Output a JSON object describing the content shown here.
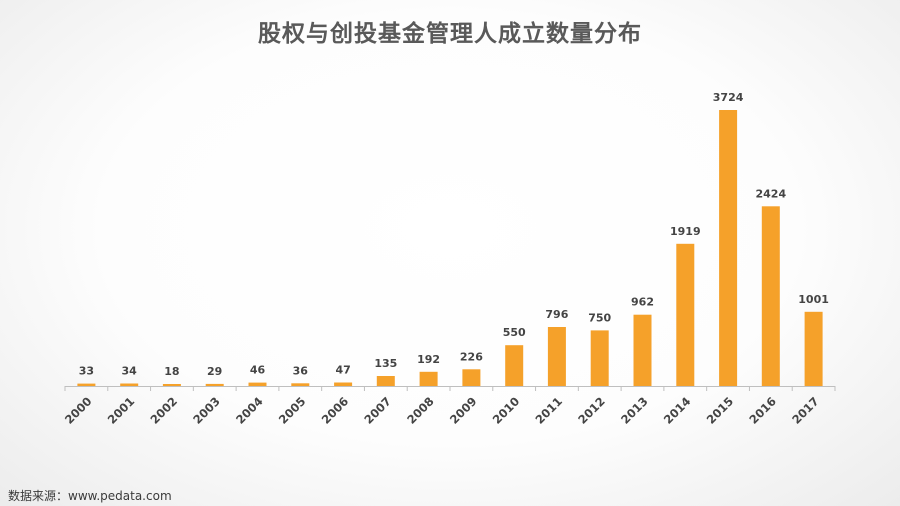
{
  "chart_data": {
    "type": "bar",
    "title": "股权与创投基金管理人成立数量分布",
    "xlabel": "",
    "ylabel": "",
    "categories": [
      "2000",
      "2001",
      "2002",
      "2003",
      "2004",
      "2005",
      "2006",
      "2007",
      "2008",
      "2009",
      "2010",
      "2011",
      "2012",
      "2013",
      "2014",
      "2015",
      "2016",
      "2017"
    ],
    "values": [
      33,
      34,
      18,
      29,
      46,
      36,
      47,
      135,
      192,
      226,
      550,
      796,
      750,
      962,
      1919,
      3724,
      2424,
      1001
    ],
    "ylim": [
      0,
      3724
    ],
    "bar_color": "#f5a12a",
    "grid": false,
    "legend": "none"
  },
  "footer": {
    "source": "数据来源：www.pedata.com"
  }
}
